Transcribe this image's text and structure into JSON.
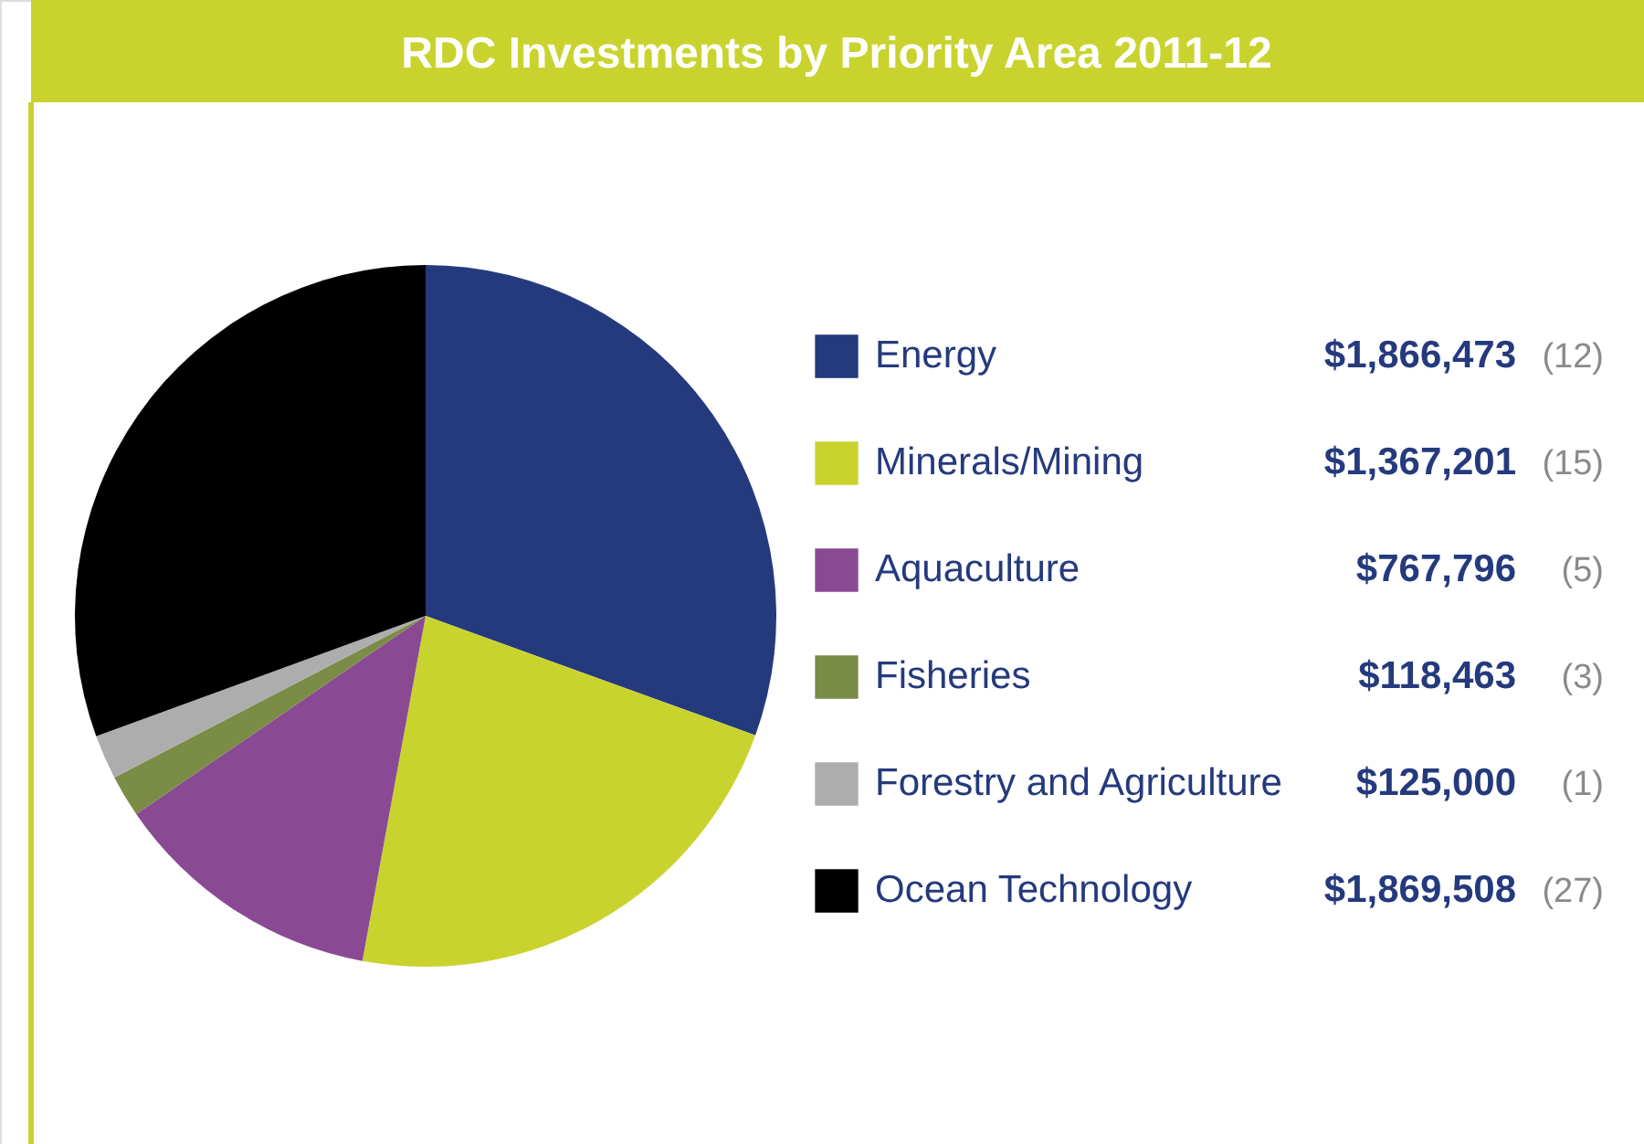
{
  "chart_data": {
    "type": "pie",
    "title": "RDC Investments by Priority Area 2011-12",
    "categories": [
      "Energy",
      "Minerals/Mining",
      "Aquaculture",
      "Fisheries",
      "Forestry and Agriculture",
      "Ocean Technology"
    ],
    "values": [
      1866473,
      1367201,
      767796,
      118463,
      125000,
      1869508
    ],
    "colors": [
      "#253a7d",
      "#c9d32e",
      "#8a4a93",
      "#7a8c45",
      "#adadad",
      "#000000"
    ],
    "value_labels": [
      "$1,866,473",
      "$1,367,201",
      "$767,796",
      "$118,463",
      "$125,000",
      "$1,869,508"
    ],
    "annotations": [
      "(12)",
      "(15)",
      "(5)",
      "(3)",
      "(1)",
      "(27)"
    ],
    "legend": "right"
  }
}
